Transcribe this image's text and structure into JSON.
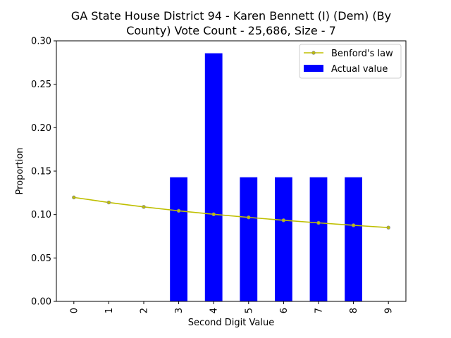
{
  "chart_data": {
    "type": "bar",
    "title_line1": "GA State House District 94 - Karen Bennett (I) (Dem) (By",
    "title_line2": "County) Vote Count - 25,686, Size - 7",
    "xlabel": "Second Digit Value",
    "ylabel": "Proportion",
    "categories": [
      "0",
      "1",
      "2",
      "3",
      "4",
      "5",
      "6",
      "7",
      "8",
      "9"
    ],
    "ylim": [
      0,
      0.3
    ],
    "yticks": [
      "0.00",
      "0.05",
      "0.10",
      "0.15",
      "0.20",
      "0.25",
      "0.30"
    ],
    "grid": false,
    "legend_position": "top-right",
    "series": [
      {
        "name": "Benford's law",
        "type": "line",
        "color": "#bfbf00",
        "values": [
          0.1197,
          0.1139,
          0.1088,
          0.1043,
          0.1003,
          0.0967,
          0.0934,
          0.0904,
          0.0876,
          0.085
        ]
      },
      {
        "name": "Actual value",
        "type": "bar",
        "color": "#0000ff",
        "values": [
          0,
          0,
          0,
          0.1429,
          0.2857,
          0.1429,
          0.1429,
          0.1429,
          0.1429,
          0
        ]
      }
    ]
  }
}
